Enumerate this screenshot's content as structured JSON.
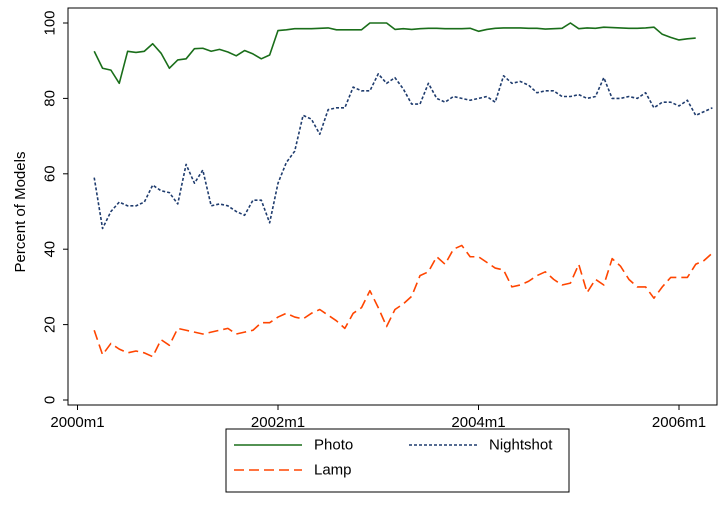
{
  "chart_data": {
    "type": "line",
    "ylabel": "Percent of Models",
    "xlabel": "",
    "ylim": [
      0,
      100
    ],
    "yticks": [
      0,
      20,
      40,
      60,
      80,
      100
    ],
    "xlim": [
      "2000m1",
      "2006m5"
    ],
    "xticks": [
      "2000m1",
      "2002m1",
      "2004m1",
      "2006m1"
    ],
    "grid": false,
    "legend_position": "bottom",
    "series": [
      {
        "name": "Photo",
        "color": "#1a6e1a",
        "style": "solid",
        "points": [
          [
            "2000m3",
            92.5
          ],
          [
            "2000m4",
            88
          ],
          [
            "2000m5",
            87.5
          ],
          [
            "2000m6",
            84
          ],
          [
            "2000m7",
            92.5
          ],
          [
            "2000m8",
            92.2
          ],
          [
            "2000m9",
            92.5
          ],
          [
            "2000m10",
            94.5
          ],
          [
            "2000m11",
            92
          ],
          [
            "2000m12",
            88
          ],
          [
            "2001m1",
            90.2
          ],
          [
            "2001m2",
            90.5
          ],
          [
            "2001m3",
            93.2
          ],
          [
            "2001m4",
            93.3
          ],
          [
            "2001m5",
            92.5
          ],
          [
            "2001m6",
            93
          ],
          [
            "2001m7",
            92.3
          ],
          [
            "2001m8",
            91.3
          ],
          [
            "2001m9",
            92.7
          ],
          [
            "2001m10",
            91.8
          ],
          [
            "2001m11",
            90.5
          ],
          [
            "2001m12",
            91.5
          ],
          [
            "2002m1",
            98
          ],
          [
            "2002m2",
            98.2
          ],
          [
            "2002m3",
            98.5
          ],
          [
            "2002m4",
            98.5
          ],
          [
            "2002m5",
            98.5
          ],
          [
            "2002m6",
            98.6
          ],
          [
            "2002m7",
            98.7
          ],
          [
            "2002m8",
            98.2
          ],
          [
            "2002m9",
            98.2
          ],
          [
            "2002m10",
            98.2
          ],
          [
            "2002m11",
            98.2
          ],
          [
            "2002m12",
            100
          ],
          [
            "2003m1",
            100
          ],
          [
            "2003m2",
            100
          ],
          [
            "2003m3",
            98.3
          ],
          [
            "2003m4",
            98.5
          ],
          [
            "2003m5",
            98.3
          ],
          [
            "2003m6",
            98.5
          ],
          [
            "2003m7",
            98.6
          ],
          [
            "2003m8",
            98.6
          ],
          [
            "2003m9",
            98.5
          ],
          [
            "2003m10",
            98.5
          ],
          [
            "2003m11",
            98.5
          ],
          [
            "2003m12",
            98.6
          ],
          [
            "2004m1",
            97.8
          ],
          [
            "2004m2",
            98.3
          ],
          [
            "2004m3",
            98.6
          ],
          [
            "2004m4",
            98.7
          ],
          [
            "2004m5",
            98.7
          ],
          [
            "2004m6",
            98.7
          ],
          [
            "2004m7",
            98.6
          ],
          [
            "2004m8",
            98.6
          ],
          [
            "2004m9",
            98.4
          ],
          [
            "2004m10",
            98.5
          ],
          [
            "2004m11",
            98.6
          ],
          [
            "2004m12",
            100
          ],
          [
            "2005m1",
            98.5
          ],
          [
            "2005m2",
            98.7
          ],
          [
            "2005m3",
            98.6
          ],
          [
            "2005m4",
            98.9
          ],
          [
            "2005m5",
            98.8
          ],
          [
            "2005m6",
            98.7
          ],
          [
            "2005m7",
            98.6
          ],
          [
            "2005m8",
            98.6
          ],
          [
            "2005m9",
            98.7
          ],
          [
            "2005m10",
            98.9
          ],
          [
            "2005m11",
            97
          ],
          [
            "2005m12",
            96.2
          ],
          [
            "2006m1",
            95.5
          ],
          [
            "2006m2",
            95.8
          ],
          [
            "2006m3",
            96
          ]
        ]
      },
      {
        "name": "Nightshot",
        "color": "#1f3c6e",
        "style": "dotted",
        "points": [
          [
            "2000m3",
            59
          ],
          [
            "2000m4",
            45.5
          ],
          [
            "2000m5",
            50
          ],
          [
            "2000m6",
            52.5
          ],
          [
            "2000m7",
            51.5
          ],
          [
            "2000m8",
            51.5
          ],
          [
            "2000m9",
            52.5
          ],
          [
            "2000m10",
            57
          ],
          [
            "2000m11",
            55.5
          ],
          [
            "2000m12",
            55
          ],
          [
            "2001m1",
            52
          ],
          [
            "2001m2",
            62.5
          ],
          [
            "2001m3",
            57.5
          ],
          [
            "2001m4",
            61
          ],
          [
            "2001m5",
            51.5
          ],
          [
            "2001m6",
            52
          ],
          [
            "2001m7",
            51.5
          ],
          [
            "2001m8",
            50
          ],
          [
            "2001m9",
            49
          ],
          [
            "2001m10",
            53
          ],
          [
            "2001m11",
            53
          ],
          [
            "2001m12",
            47
          ],
          [
            "2002m1",
            57.5
          ],
          [
            "2002m2",
            63
          ],
          [
            "2002m3",
            66
          ],
          [
            "2002m4",
            75.5
          ],
          [
            "2002m5",
            74.5
          ],
          [
            "2002m6",
            70.5
          ],
          [
            "2002m7",
            77
          ],
          [
            "2002m8",
            77.5
          ],
          [
            "2002m9",
            77.5
          ],
          [
            "2002m10",
            83
          ],
          [
            "2002m11",
            82
          ],
          [
            "2002m12",
            82
          ],
          [
            "2003m1",
            86.5
          ],
          [
            "2003m2",
            84
          ],
          [
            "2003m3",
            85.5
          ],
          [
            "2003m4",
            82.5
          ],
          [
            "2003m5",
            78.5
          ],
          [
            "2003m6",
            78.5
          ],
          [
            "2003m7",
            84
          ],
          [
            "2003m8",
            80
          ],
          [
            "2003m9",
            79
          ],
          [
            "2003m10",
            80.5
          ],
          [
            "2003m11",
            80
          ],
          [
            "2003m12",
            79.5
          ],
          [
            "2004m1",
            80
          ],
          [
            "2004m2",
            80.5
          ],
          [
            "2004m3",
            79
          ],
          [
            "2004m4",
            86
          ],
          [
            "2004m5",
            84
          ],
          [
            "2004m6",
            84.5
          ],
          [
            "2004m7",
            83.5
          ],
          [
            "2004m8",
            81.5
          ],
          [
            "2004m9",
            82
          ],
          [
            "2004m10",
            82
          ],
          [
            "2004m11",
            80.5
          ],
          [
            "2004m12",
            80.5
          ],
          [
            "2005m1",
            81
          ],
          [
            "2005m2",
            80
          ],
          [
            "2005m3",
            80.5
          ],
          [
            "2005m4",
            85.5
          ],
          [
            "2005m5",
            80
          ],
          [
            "2005m6",
            80
          ],
          [
            "2005m7",
            80.5
          ],
          [
            "2005m8",
            80
          ],
          [
            "2005m9",
            81.5
          ],
          [
            "2005m10",
            77.5
          ],
          [
            "2005m11",
            79
          ],
          [
            "2005m12",
            79
          ],
          [
            "2006m1",
            78
          ],
          [
            "2006m2",
            79.5
          ],
          [
            "2006m3",
            75.5
          ],
          [
            "2006m4",
            76.5
          ],
          [
            "2006m5",
            77.5
          ]
        ]
      },
      {
        "name": "Lamp",
        "color": "#ff4500",
        "style": "dashed",
        "points": [
          [
            "2000m3",
            18.5
          ],
          [
            "2000m4",
            12
          ],
          [
            "2000m5",
            15
          ],
          [
            "2000m6",
            13.5
          ],
          [
            "2000m7",
            12.5
          ],
          [
            "2000m8",
            13
          ],
          [
            "2000m9",
            12.5
          ],
          [
            "2000m10",
            11.5
          ],
          [
            "2000m11",
            16
          ],
          [
            "2000m12",
            14.5
          ],
          [
            "2001m1",
            19
          ],
          [
            "2001m2",
            18.5
          ],
          [
            "2001m3",
            18
          ],
          [
            "2001m4",
            17.5
          ],
          [
            "2001m5",
            18
          ],
          [
            "2001m6",
            18.5
          ],
          [
            "2001m7",
            19
          ],
          [
            "2001m8",
            17.5
          ],
          [
            "2001m9",
            18
          ],
          [
            "2001m10",
            18.5
          ],
          [
            "2001m11",
            20.5
          ],
          [
            "2001m12",
            20.5
          ],
          [
            "2002m1",
            22
          ],
          [
            "2002m2",
            23
          ],
          [
            "2002m3",
            22
          ],
          [
            "2002m4",
            21.5
          ],
          [
            "2002m5",
            23
          ],
          [
            "2002m6",
            24
          ],
          [
            "2002m7",
            22.5
          ],
          [
            "2002m8",
            21
          ],
          [
            "2002m9",
            19
          ],
          [
            "2002m10",
            23
          ],
          [
            "2002m11",
            24.5
          ],
          [
            "2002m12",
            29
          ],
          [
            "2003m1",
            24.5
          ],
          [
            "2003m2",
            19.5
          ],
          [
            "2003m3",
            24
          ],
          [
            "2003m4",
            25.5
          ],
          [
            "2003m5",
            27.5
          ],
          [
            "2003m6",
            33
          ],
          [
            "2003m7",
            34
          ],
          [
            "2003m8",
            38
          ],
          [
            "2003m9",
            36
          ],
          [
            "2003m10",
            40
          ],
          [
            "2003m11",
            41
          ],
          [
            "2003m12",
            38
          ],
          [
            "2004m1",
            38
          ],
          [
            "2004m2",
            36.5
          ],
          [
            "2004m3",
            35
          ],
          [
            "2004m4",
            34.5
          ],
          [
            "2004m5",
            30
          ],
          [
            "2004m6",
            30.5
          ],
          [
            "2004m7",
            31.5
          ],
          [
            "2004m8",
            33
          ],
          [
            "2004m9",
            34
          ],
          [
            "2004m10",
            32
          ],
          [
            "2004m11",
            30.5
          ],
          [
            "2004m12",
            31
          ],
          [
            "2005m1",
            36
          ],
          [
            "2005m2",
            28.5
          ],
          [
            "2005m3",
            32
          ],
          [
            "2005m4",
            30.5
          ],
          [
            "2005m5",
            37.5
          ],
          [
            "2005m6",
            35.5
          ],
          [
            "2005m7",
            32
          ],
          [
            "2005m8",
            30
          ],
          [
            "2005m9",
            30
          ],
          [
            "2005m10",
            27
          ],
          [
            "2005m11",
            30
          ],
          [
            "2005m12",
            32.5
          ],
          [
            "2006m1",
            32.5
          ],
          [
            "2006m2",
            32.5
          ],
          [
            "2006m3",
            36
          ],
          [
            "2006m4",
            37
          ],
          [
            "2006m5",
            39
          ]
        ]
      }
    ]
  }
}
